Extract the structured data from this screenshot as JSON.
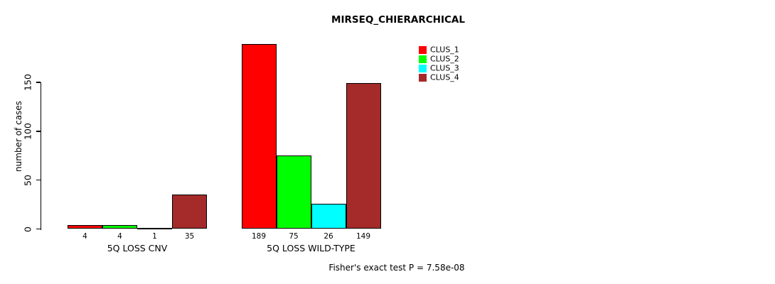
{
  "chart_data": {
    "type": "bar",
    "title": "MIRSEQ_CHIERARCHICAL",
    "ylabel": "number of cases",
    "xlabel": "",
    "categories": [
      "5Q LOSS CNV",
      "5Q LOSS WILD-TYPE"
    ],
    "series": [
      {
        "name": "CLUS_1",
        "color": "#FF0000",
        "values": [
          4,
          189
        ]
      },
      {
        "name": "CLUS_2",
        "color": "#00FF00",
        "values": [
          4,
          75
        ]
      },
      {
        "name": "CLUS_3",
        "color": "#00FFFF",
        "values": [
          1,
          26
        ]
      },
      {
        "name": "CLUS_4",
        "color": "#A52A2A",
        "values": [
          35,
          149
        ]
      }
    ],
    "y_ticks": [
      0,
      50,
      100,
      150
    ],
    "ylim": [
      0,
      195
    ],
    "grid": false,
    "bar_value_labels_shown": true,
    "legend_position": "inside-top-right",
    "annotation": "Fisher's exact test P = 7.58e-08"
  }
}
